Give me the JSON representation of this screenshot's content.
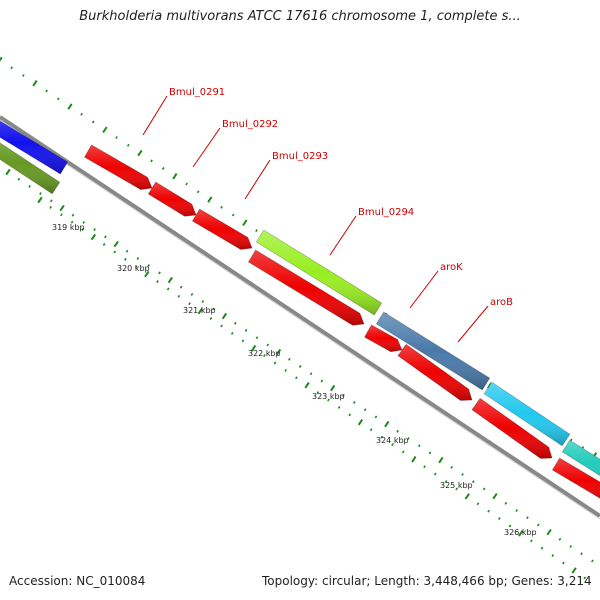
{
  "title": "Burkholderia multivorans ATCC 17616 chromosome 1, complete s...",
  "footer": {
    "accession": "Accession: NC_010084",
    "topology": "Topology: circular; Length: 3,448,466 bp; Genes: 3,214"
  },
  "kbp_labels": [
    "319 kbp",
    "320 kbp",
    "321 kbp",
    "322 kbp",
    "323 kbp",
    "324 kbp",
    "325 kbp",
    "326 kbp"
  ],
  "gene_labels": [
    "Bmul_0291",
    "Bmul_0292",
    "Bmul_0293",
    "Bmul_0294",
    "aroK",
    "aroB"
  ],
  "colors": {
    "forward_cds": "#ee0000",
    "green_gene": "#99ee22",
    "steel_blue_gene": "#4a7aaa",
    "light_blue_gene": "#22c8ee",
    "teal_gene": "#22ccbb",
    "blue_gene": "#1111ee",
    "olive_gene": "#669922",
    "backbone": "#888888",
    "tick": "#1a8a1a",
    "label": "#cc0000"
  }
}
